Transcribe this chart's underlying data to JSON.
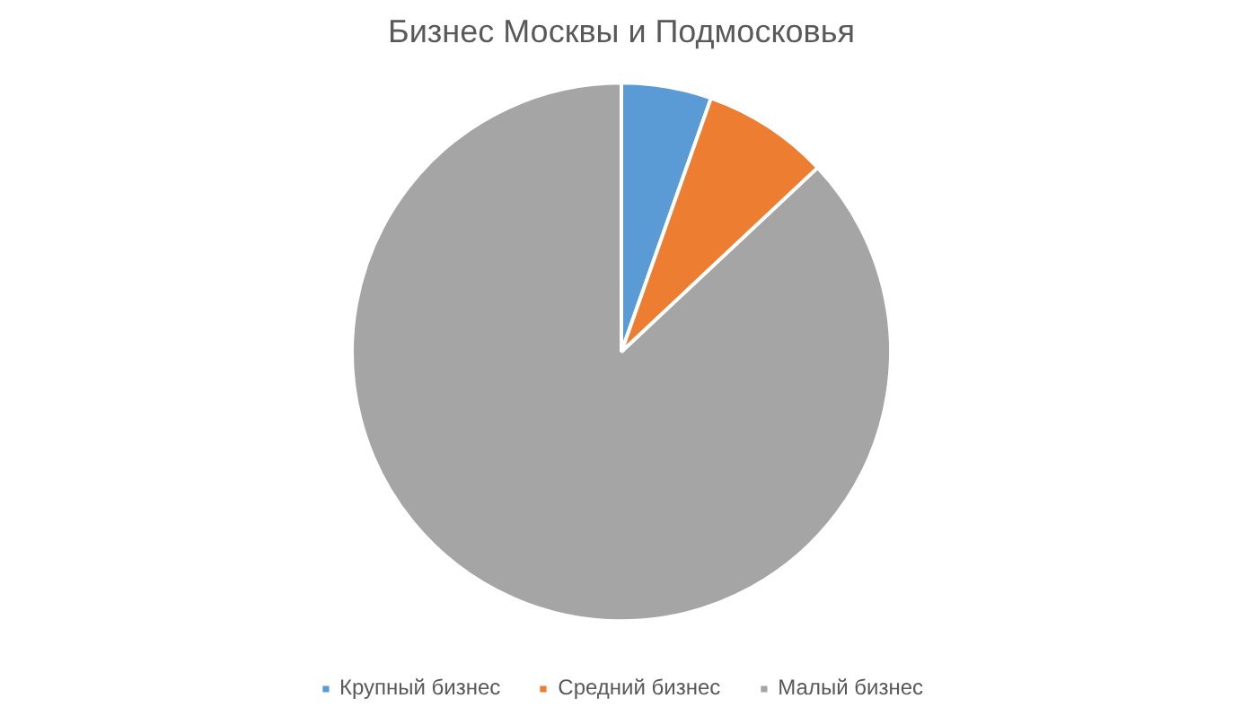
{
  "chart_data": {
    "type": "pie",
    "title": "Бизнес Москвы и Подмосковья",
    "categories": [
      "Крупный бизнес",
      "Средний бизнес",
      "Малый бизнес"
    ],
    "values": [
      5.4,
      7.6,
      87.0
    ],
    "colors": [
      "#5b9bd5",
      "#ed7d31",
      "#a5a5a5"
    ],
    "legend": "bottom"
  }
}
